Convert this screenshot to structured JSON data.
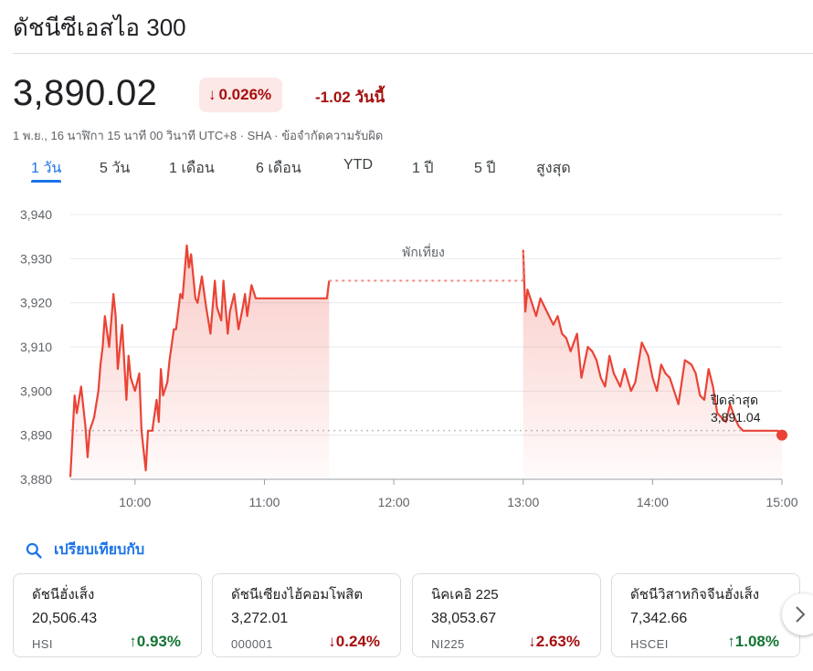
{
  "header": {
    "title": "ดัชนีซีเอสไอ 300"
  },
  "quote": {
    "price": "3,890.02",
    "change_pct": "0.026%",
    "change_abs": "-1.02 วันนี้",
    "meta": "1 พ.ย., 16 นาฬิกา 15 นาที 00 วินาที UTC+8 · SHA · ข้อจำกัดความรับผิด"
  },
  "tabs": [
    {
      "label": "1 วัน",
      "active": true
    },
    {
      "label": "5 วัน"
    },
    {
      "label": "1 เดือน"
    },
    {
      "label": "6 เดือน"
    },
    {
      "label": "YTD"
    },
    {
      "label": "1 ปี"
    },
    {
      "label": "5 ปี"
    },
    {
      "label": "สูงสุด"
    }
  ],
  "chart_data": {
    "type": "area",
    "ylim": [
      3880,
      3940
    ],
    "yticks": [
      "3,940",
      "3,930",
      "3,920",
      "3,910",
      "3,900",
      "3,890",
      "3,880"
    ],
    "ytick_values": [
      3940,
      3930,
      3920,
      3910,
      3900,
      3890,
      3880
    ],
    "xticks": [
      "10:00",
      "11:00",
      "12:00",
      "13:00",
      "14:00",
      "15:00"
    ],
    "xtick_values": [
      "10:00",
      "11:00",
      "12:00",
      "13:00",
      "14:00",
      "15:00"
    ],
    "xlim": [
      "09:30",
      "15:00"
    ],
    "break_label": "พักเที่ยง",
    "break_range": [
      "11:30",
      "13:00"
    ],
    "prev_close_label": "ปิดล่าสุด",
    "prev_close_value": "3,891.04",
    "prev_close": 3891.04,
    "line_color": "#ea4335",
    "series": [
      {
        "x": [
          "09:30",
          "09:32",
          "09:33",
          "09:35",
          "09:37",
          "09:38",
          "09:39",
          "09:41",
          "09:43",
          "09:44",
          "09:45",
          "09:46",
          "09:48",
          "09:50",
          "09:51",
          "09:52",
          "09:54",
          "09:56",
          "09:57",
          "09:58",
          "10:00",
          "10:02",
          "10:03",
          "10:05",
          "10:06",
          "10:08",
          "10:10",
          "10:11",
          "10:12",
          "10:13",
          "10:15",
          "10:16",
          "10:18",
          "10:19",
          "10:21",
          "10:22",
          "10:24",
          "10:25",
          "10:26",
          "10:28",
          "10:29",
          "10:31",
          "10:33",
          "10:35",
          "10:37",
          "10:38",
          "10:40",
          "10:41",
          "10:43",
          "10:44",
          "10:46",
          "10:48",
          "10:50",
          "10:51",
          "10:52",
          "10:54",
          "10:56",
          "10:58",
          "11:00",
          "11:02",
          "11:04",
          "11:05",
          "11:07",
          "11:09",
          "11:11",
          "11:13",
          "11:15",
          "11:17",
          "11:19",
          "11:21",
          "11:23",
          "11:25",
          "11:27",
          "11:29",
          "11:30",
          "13:00",
          "13:01",
          "13:02",
          "13:04",
          "13:06",
          "13:08",
          "13:10",
          "13:12",
          "13:14",
          "13:16",
          "13:18",
          "13:20",
          "13:22",
          "13:25",
          "13:27",
          "13:30",
          "13:32",
          "13:34",
          "13:36",
          "13:38",
          "13:40",
          "13:42",
          "13:45",
          "13:47",
          "13:50",
          "13:52",
          "13:55",
          "13:58",
          "14:00",
          "14:02",
          "14:04",
          "14:06",
          "14:08",
          "14:10",
          "14:12",
          "14:15",
          "14:18",
          "14:20",
          "14:22",
          "14:24",
          "14:26",
          "14:28",
          "14:30",
          "14:32",
          "14:34",
          "14:36",
          "14:38",
          "14:40",
          "14:42",
          "14:44",
          "14:46",
          "14:48",
          "14:50",
          "14:52",
          "14:54",
          "14:56",
          "14:58",
          "15:00"
        ],
        "values": [
          3880.5,
          3899,
          3895,
          3901,
          3892,
          3885,
          3891,
          3894,
          3900,
          3906,
          3910,
          3917,
          3910,
          3922,
          3917,
          3905,
          3915,
          3898,
          3908,
          3903,
          3900,
          3904,
          3891,
          3882,
          3891,
          3891,
          3898,
          3893,
          3905,
          3899,
          3902,
          3907,
          3914,
          3914,
          3922,
          3921,
          3933,
          3928,
          3931,
          3921,
          3920,
          3926,
          3919,
          3913,
          3925,
          3919,
          3916,
          3925,
          3913,
          3918,
          3922,
          3914,
          3919,
          3922,
          3917,
          3924,
          3921,
          3921,
          3921,
          3921,
          3921,
          3921,
          3921,
          3921,
          3921,
          3921,
          3921,
          3921,
          3921,
          3921,
          3921,
          3921,
          3921,
          3921,
          3925,
          3932,
          3918,
          3923,
          3920,
          3917,
          3921,
          3919,
          3917,
          3915,
          3917,
          3913,
          3912,
          3909,
          3913,
          3903,
          3910,
          3909,
          3907,
          3903,
          3901,
          3908,
          3904,
          3901,
          3905,
          3900,
          3902,
          3911,
          3908,
          3903,
          3900,
          3906,
          3904,
          3903,
          3900,
          3897,
          3907,
          3906,
          3904,
          3899,
          3898,
          3905,
          3901,
          3895,
          3894,
          3893,
          3897,
          3894,
          3892,
          3891,
          3891,
          3891,
          3891,
          3891,
          3891,
          3891,
          3891,
          3891,
          3890.02
        ]
      }
    ]
  },
  "compare": {
    "label": "เปรียบเทียบกับ"
  },
  "cards": [
    {
      "name": "ดัชนีฮั่งเส็ง",
      "value": "20,506.43",
      "ticker": "HSI",
      "change": "0.93%",
      "dir": "up"
    },
    {
      "name": "ดัชนีเซียงไฮ้คอมโพสิต",
      "value": "3,272.01",
      "ticker": "000001",
      "change": "0.24%",
      "dir": "down"
    },
    {
      "name": "นิคเคอิ 225",
      "value": "38,053.67",
      "ticker": "NI225",
      "change": "2.63%",
      "dir": "down"
    },
    {
      "name": "ดัชนีวิสาหกิจจีนฮั่งเส็ง",
      "value": "7,342.66",
      "ticker": "HSCEI",
      "change": "1.08%",
      "dir": "up"
    }
  ]
}
